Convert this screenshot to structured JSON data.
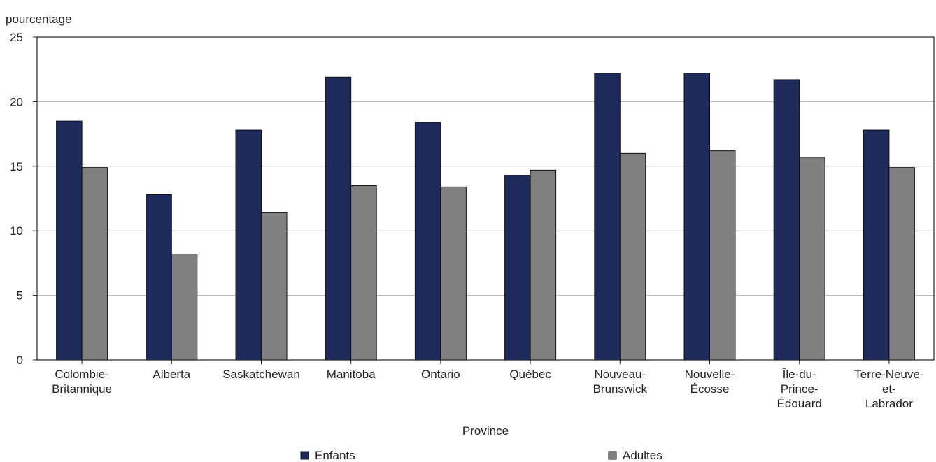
{
  "chart_data": {
    "type": "bar",
    "ylabel": "pourcentage",
    "xlabel": "Province",
    "ylim": [
      0,
      25
    ],
    "yticks": [
      0,
      5,
      10,
      15,
      20,
      25
    ],
    "grid": true,
    "legend_position": "bottom",
    "categories": [
      [
        "Colombie-",
        "Britannique"
      ],
      [
        "Alberta"
      ],
      [
        "Saskatchewan"
      ],
      [
        "Manitoba"
      ],
      [
        "Ontario"
      ],
      [
        "Québec"
      ],
      [
        "Nouveau-",
        "Brunswick"
      ],
      [
        "Nouvelle-",
        "Écosse"
      ],
      [
        "Île-du-",
        "Prince-",
        "Édouard"
      ],
      [
        "Terre-Neuve-",
        "et-",
        "Labrador"
      ]
    ],
    "series": [
      {
        "name": "Enfants",
        "color": "#1f2a5c",
        "values": [
          18.5,
          12.8,
          17.8,
          21.9,
          18.4,
          14.3,
          22.2,
          22.2,
          21.7,
          17.8
        ]
      },
      {
        "name": "Adultes",
        "color": "#808080",
        "values": [
          14.9,
          8.2,
          11.4,
          13.5,
          13.4,
          14.7,
          16.0,
          16.2,
          15.7,
          14.9
        ]
      }
    ]
  }
}
